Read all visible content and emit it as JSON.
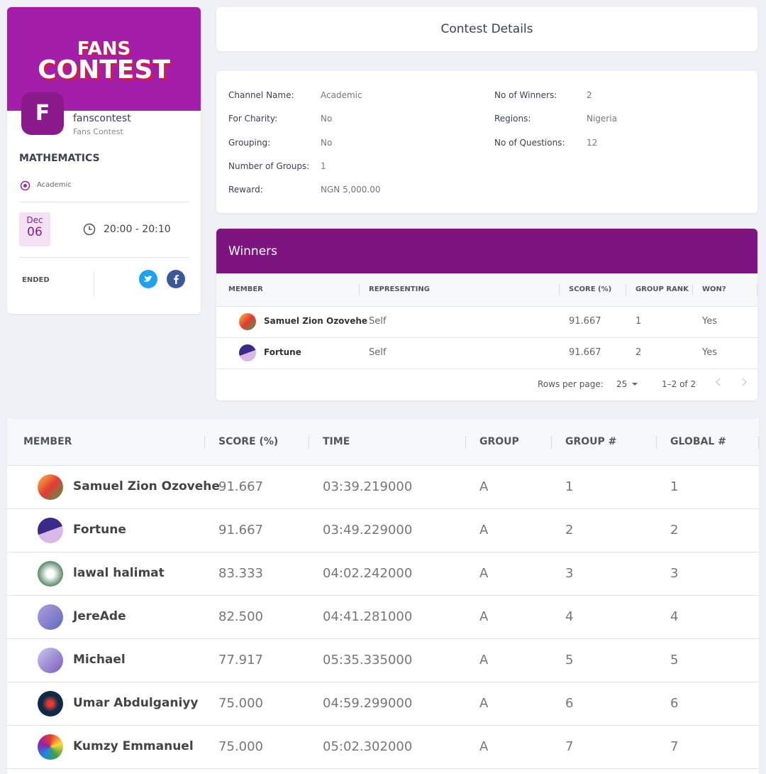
{
  "profile": {
    "banner": {
      "line1": "FANS",
      "line2": "CONTEST"
    },
    "avatar_letter": "F",
    "name": "fanscontest",
    "handle": "Fans Contest",
    "category": "MATHEMATICS",
    "channel": "Academic",
    "date": {
      "month": "Dec",
      "day": "06"
    },
    "time": "20:00 - 20:10",
    "status": "ENDED"
  },
  "details": {
    "title": "Contest Details",
    "left": [
      {
        "label": "Channel Name:",
        "value": "Academic"
      },
      {
        "label": "For Charity:",
        "value": "No"
      },
      {
        "label": "Grouping:",
        "value": "No"
      },
      {
        "label": "Number of Groups:",
        "value": "1"
      },
      {
        "label": "Reward:",
        "value": "NGN 5,000.00"
      }
    ],
    "right": [
      {
        "label": "No of Winners:",
        "value": "2"
      },
      {
        "label": "Regions:",
        "value": "Nigeria"
      },
      {
        "label": "No of Questions:",
        "value": "12"
      }
    ]
  },
  "winners": {
    "title": "Winners",
    "columns": [
      "MEMBER",
      "REPRESENTING",
      "SCORE (%)",
      "GROUP RANK",
      "WON?"
    ],
    "rows": [
      [
        "Samuel Zion Ozovehe",
        "Self",
        "91.667",
        "1",
        "Yes"
      ],
      [
        "Fortune",
        "Self",
        "91.667",
        "2",
        "Yes"
      ]
    ],
    "footer": {
      "rows_per_page_label": "Rows per page:",
      "rows_per_page": "25",
      "range": "1–2 of 2"
    }
  },
  "leaderboard": {
    "columns": [
      "MEMBER",
      "SCORE (%)",
      "TIME",
      "GROUP",
      "GROUP #",
      "GLOBAL #"
    ],
    "rows": [
      [
        "Samuel Zion Ozovehe",
        "91.667",
        "03:39.219000",
        "A",
        "1",
        "1"
      ],
      [
        "Fortune",
        "91.667",
        "03:49.229000",
        "A",
        "2",
        "2"
      ],
      [
        "lawal halimat",
        "83.333",
        "04:02.242000",
        "A",
        "3",
        "3"
      ],
      [
        "JereAde",
        "82.500",
        "04:41.281000",
        "A",
        "4",
        "4"
      ],
      [
        "Michael",
        "77.917",
        "05:35.335000",
        "A",
        "5",
        "5"
      ],
      [
        "Umar Abdulganiyy",
        "75.000",
        "04:59.299000",
        "A",
        "6",
        "6"
      ],
      [
        "Kumzy Emmanuel",
        "75.000",
        "05:02.302000",
        "A",
        "7",
        "7"
      ]
    ]
  }
}
